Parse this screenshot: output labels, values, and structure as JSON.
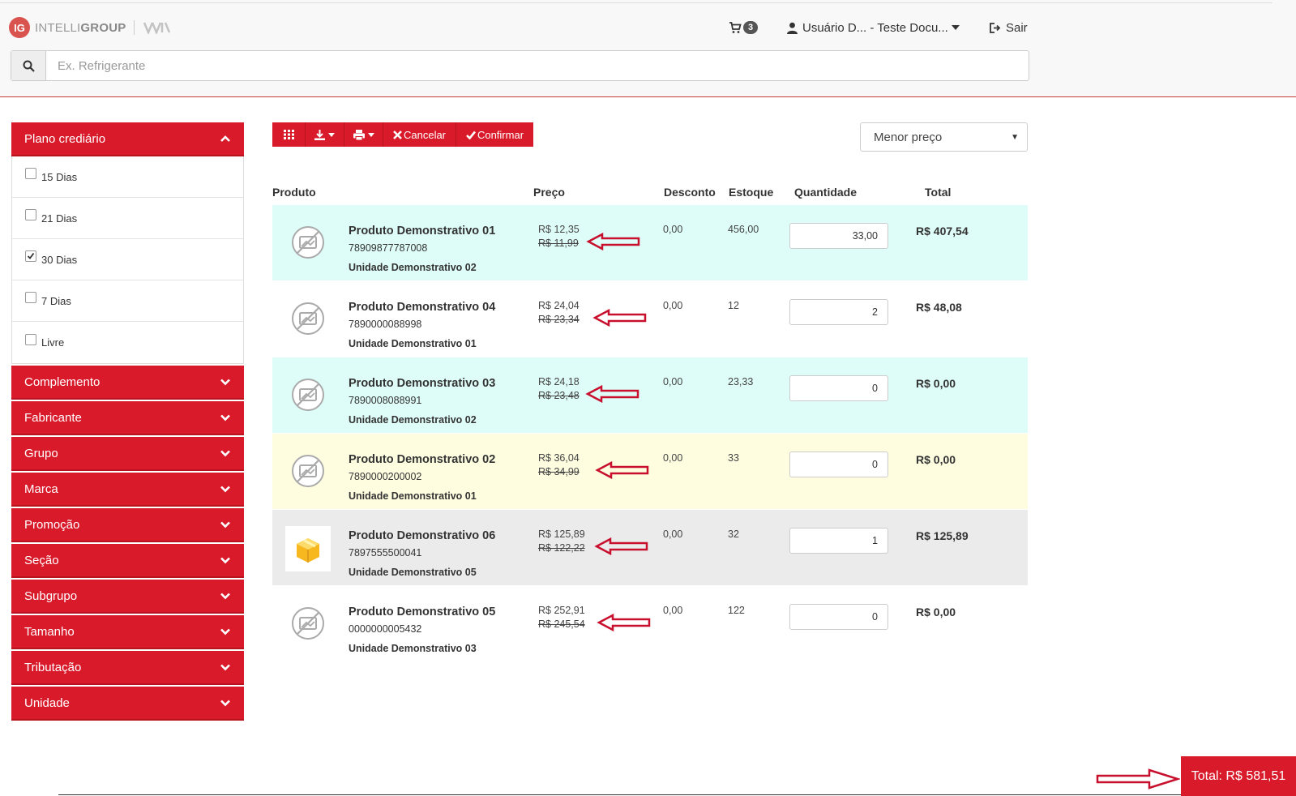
{
  "header": {
    "logo_badge": "IG",
    "logo_text_a": "INTELLI",
    "logo_text_b": "GROUP",
    "cart_count": "3",
    "user_label": "Usuário D... - Teste Docu...",
    "logout_label": "Sair",
    "search_placeholder": "Ex. Refrigerante"
  },
  "sidebar": {
    "open_panel": {
      "title": "Plano crediário",
      "options": [
        {
          "label": "15 Dias",
          "checked": false
        },
        {
          "label": "21 Dias",
          "checked": false
        },
        {
          "label": "30 Dias",
          "checked": true
        },
        {
          "label": "7 Dias",
          "checked": false
        },
        {
          "label": "Livre",
          "checked": false
        }
      ]
    },
    "panels": [
      "Complemento",
      "Fabricante",
      "Grupo",
      "Marca",
      "Promoção",
      "Seção",
      "Subgrupo",
      "Tamanho",
      "Tributação",
      "Unidade"
    ]
  },
  "toolbar": {
    "cancel_label": "Cancelar",
    "confirm_label": "Confirmar",
    "sort_selected": "Menor preço"
  },
  "table": {
    "headers": {
      "produto": "Produto",
      "preco": "Preço",
      "desconto": "Desconto",
      "estoque": "Estoque",
      "quantidade": "Quantidade",
      "total": "Total"
    },
    "rows": [
      {
        "name": "Produto Demonstrativo 01",
        "code": "78909877787008",
        "unit": "Unidade Demonstrativo 02",
        "price": "R$ 12,35",
        "old_price": "R$ 11,99",
        "discount": "0,00",
        "stock": "456,00",
        "qty": "33,00",
        "total": "R$ 407,54",
        "bg": "#dffdf8",
        "thumb": "no-image"
      },
      {
        "name": "Produto Demonstrativo 04",
        "code": "7890000088998",
        "unit": "Unidade Demonstrativo 01",
        "price": "R$ 24,04",
        "old_price": "R$ 23,34",
        "discount": "0,00",
        "stock": "12",
        "qty": "2",
        "total": "R$ 48,08",
        "bg": "#ffffff",
        "thumb": "no-image"
      },
      {
        "name": "Produto Demonstrativo 03",
        "code": "7890008088991",
        "unit": "Unidade Demonstrativo 02",
        "price": "R$ 24,18",
        "old_price": "R$ 23,48",
        "discount": "0,00",
        "stock": "23,33",
        "qty": "0",
        "total": "R$ 0,00",
        "bg": "#dffdf8",
        "thumb": "no-image"
      },
      {
        "name": "Produto Demonstrativo 02",
        "code": "7890000200002",
        "unit": "Unidade Demonstrativo 01",
        "price": "R$ 36,04",
        "old_price": "R$ 34,99",
        "discount": "0,00",
        "stock": "33",
        "qty": "0",
        "total": "R$ 0,00",
        "bg": "#fefde0",
        "thumb": "no-image"
      },
      {
        "name": "Produto Demonstrativo 06",
        "code": "7897555500041",
        "unit": "Unidade Demonstrativo 05",
        "price": "R$ 125,89",
        "old_price": "R$ 122,22",
        "discount": "0,00",
        "stock": "32",
        "qty": "1",
        "total": "R$ 125,89",
        "bg": "#ebebeb",
        "thumb": "package"
      },
      {
        "name": "Produto Demonstrativo 05",
        "code": "0000000005432",
        "unit": "Unidade Demonstrativo 03",
        "price": "R$ 252,91",
        "old_price": "R$ 245,54",
        "discount": "0,00",
        "stock": "122",
        "qty": "0",
        "total": "R$ 0,00",
        "bg": "#ffffff",
        "thumb": "no-image"
      }
    ]
  },
  "footer": {
    "total_label": "Total: R$ 581,51"
  },
  "colors": {
    "brand_red": "#d91a2a",
    "annotation_arrow": "#c8102e"
  }
}
